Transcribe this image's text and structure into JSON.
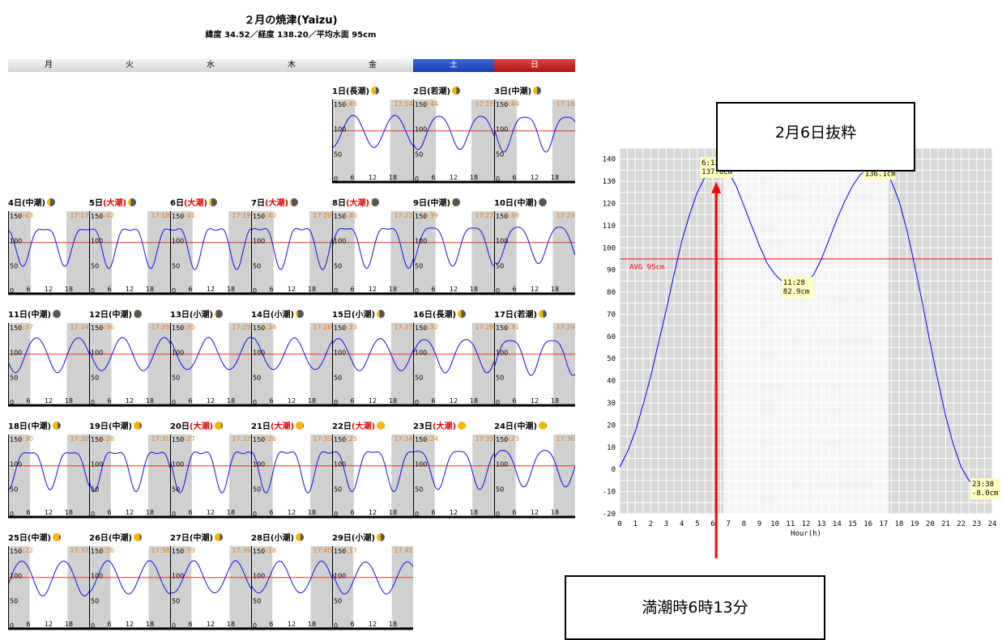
{
  "header": {
    "title": "２月の焼津(Yaizu)",
    "subtitle": "緯度 34.52／経度 138.20／平均水面 95cm"
  },
  "weekdays": [
    "月",
    "火",
    "水",
    "木",
    "金",
    "土",
    "日"
  ],
  "days": [
    {
      "label": "1日",
      "tide": "(長潮)",
      "moon": 0.38,
      "sunrise": "6:45",
      "sunset": "17:14"
    },
    {
      "label": "2日",
      "tide": "(若潮)",
      "moon": 0.45,
      "sunrise": "6:44",
      "sunset": "17:15"
    },
    {
      "label": "3日",
      "tide": "(中潮)",
      "moon": 0.52,
      "sunrise": "6:44",
      "sunset": "17:16"
    },
    {
      "label": "4日",
      "tide": "(中潮)",
      "moon": 0.58,
      "sunrise": "6:43",
      "sunset": "17:17"
    },
    {
      "label": "5日",
      "tide": "(大潮)",
      "moon": 0.65,
      "sunrise": "6:42",
      "sunset": "17:18"
    },
    {
      "label": "6日",
      "tide": "(大潮)",
      "moon": 0.72,
      "sunrise": "6:41",
      "sunset": "17:19"
    },
    {
      "label": "7日",
      "tide": "(大潮)",
      "moon": 0.78,
      "sunrise": "6:40",
      "sunset": "17:20"
    },
    {
      "label": "8日",
      "tide": "(大潮)",
      "moon": 0.85,
      "sunrise": "6:40",
      "sunset": "17:21"
    },
    {
      "label": "9日",
      "tide": "(中潮)",
      "moon": 0.92,
      "sunrise": "6:39",
      "sunset": "17:22"
    },
    {
      "label": "10日",
      "tide": "(中潮)",
      "moon": 0.97,
      "sunrise": "6:38",
      "sunset": "17:23"
    },
    {
      "label": "11日",
      "tide": "(中潮)",
      "moon": 0.93,
      "sunrise": "6:37",
      "sunset": "17:24"
    },
    {
      "label": "12日",
      "tide": "(中潮)",
      "moon": 0.88,
      "sunrise": "6:36",
      "sunset": "17:25"
    },
    {
      "label": "13日",
      "tide": "(小潮)",
      "moon": 0.82,
      "sunrise": "6:35",
      "sunset": "17:25"
    },
    {
      "label": "14日",
      "tide": "(小潮)",
      "moon": 0.74,
      "sunrise": "6:34",
      "sunset": "17:26"
    },
    {
      "label": "15日",
      "tide": "(小潮)",
      "moon": 0.65,
      "sunrise": "6:33",
      "sunset": "17:27"
    },
    {
      "label": "16日",
      "tide": "(長潮)",
      "moon": 0.55,
      "sunrise": "6:32",
      "sunset": "17:28"
    },
    {
      "label": "17日",
      "tide": "(若潮)",
      "moon": 0.45,
      "sunrise": "6:31",
      "sunset": "17:29"
    },
    {
      "label": "18日",
      "tide": "(中潮)",
      "moon": 0.35,
      "sunrise": "6:30",
      "sunset": "17:30"
    },
    {
      "label": "19日",
      "tide": "(中潮)",
      "moon": 0.26,
      "sunrise": "6:28",
      "sunset": "17:31"
    },
    {
      "label": "20日",
      "tide": "(大潮)",
      "moon": 0.18,
      "sunrise": "6:27",
      "sunset": "17:32"
    },
    {
      "label": "21日",
      "tide": "(大潮)",
      "moon": 0.1,
      "sunrise": "6:26",
      "sunset": "17:33"
    },
    {
      "label": "22日",
      "tide": "(大潮)",
      "moon": 0.05,
      "sunrise": "6:25",
      "sunset": "17:34"
    },
    {
      "label": "23日",
      "tide": "(大潮)",
      "moon": 0.05,
      "sunrise": "6:24",
      "sunset": "17:35"
    },
    {
      "label": "24日",
      "tide": "(中潮)",
      "moon": 0.1,
      "sunrise": "6:23",
      "sunset": "17:36"
    },
    {
      "label": "25日",
      "tide": "(中潮)",
      "moon": 0.18,
      "sunrise": "6:22",
      "sunset": "17:37"
    },
    {
      "label": "26日",
      "tide": "(中潮)",
      "moon": 0.26,
      "sunrise": "6:20",
      "sunset": "17:38"
    },
    {
      "label": "27日",
      "tide": "(中潮)",
      "moon": 0.34,
      "sunrise": "6:19",
      "sunset": "17:39"
    },
    {
      "label": "28日",
      "tide": "(小潮)",
      "moon": 0.42,
      "sunrise": "6:18",
      "sunset": "17:40"
    },
    {
      "label": "29日",
      "tide": "(小潮)",
      "moon": 0.5,
      "sunrise": "6:17",
      "sunset": "17:41"
    }
  ],
  "mini_axis": {
    "y_ticks": [
      "150",
      "100",
      "50",
      "0"
    ],
    "x_ticks": [
      "6",
      "12",
      "18"
    ]
  },
  "chart_data": {
    "type": "line",
    "xlabel": "Hour(h)",
    "ylabel": "",
    "xlim": [
      0,
      24
    ],
    "ylim": [
      -20,
      145
    ],
    "x_ticks": [
      0,
      1,
      2,
      3,
      4,
      5,
      6,
      7,
      8,
      9,
      10,
      11,
      12,
      13,
      14,
      15,
      16,
      17,
      18,
      19,
      20,
      21,
      22,
      23,
      24
    ],
    "y_ticks": [
      -20,
      -10,
      0,
      10,
      20,
      30,
      40,
      50,
      60,
      70,
      80,
      90,
      100,
      110,
      120,
      130,
      140
    ],
    "night_ranges": [
      [
        0,
        6.68
      ],
      [
        17.32,
        24
      ]
    ],
    "avg_line": {
      "value": 95,
      "label": "AVG 95cm",
      "color": "#ff0000"
    },
    "series": [
      {
        "color": "#0000ff",
        "x": [
          0,
          0.5,
          1,
          1.5,
          2,
          2.5,
          3,
          3.5,
          4,
          4.5,
          5,
          5.5,
          6,
          6.217,
          6.5,
          7,
          7.5,
          8,
          8.5,
          9,
          9.5,
          10,
          10.5,
          11,
          11.467,
          12,
          12.5,
          13,
          13.5,
          14,
          14.5,
          15,
          15.5,
          16,
          16.5,
          16.733,
          17,
          17.5,
          18,
          18.5,
          19,
          19.5,
          20,
          20.5,
          21,
          21.5,
          22,
          22.5,
          23,
          23.5,
          23.633,
          24
        ],
        "y": [
          1,
          8,
          17,
          29,
          42,
          57,
          72,
          88,
          103,
          115,
          125,
          132,
          136,
          137,
          136.5,
          134,
          128,
          119,
          110,
          101,
          93,
          88,
          84.5,
          83.2,
          82.9,
          84,
          88,
          95,
          104,
          113,
          121,
          128,
          133,
          135.5,
          136.1,
          136.1,
          135,
          130,
          121,
          108,
          92,
          75,
          57,
          40,
          24,
          11,
          1,
          -5,
          -7.5,
          -8,
          -8,
          -6
        ]
      }
    ],
    "annotations": [
      {
        "time": "6:13",
        "value": "137.0cm",
        "x": 6.217,
        "y": 137.0
      },
      {
        "time": "11:28",
        "value": "82.9cm",
        "x": 11.467,
        "y": 82.9
      },
      {
        "time": "16:44",
        "value": "136.1cm",
        "x": 16.733,
        "y": 136.1
      },
      {
        "time": "23:38",
        "value": "-8.0cm",
        "x": 23.633,
        "y": -8.0
      }
    ]
  },
  "callouts": {
    "top": "2月6日抜粋",
    "bottom": "満潮時6時13分"
  }
}
